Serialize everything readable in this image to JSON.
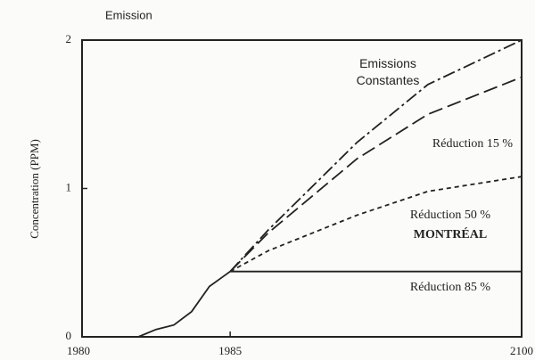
{
  "chart_data": {
    "type": "line",
    "title": "Emission",
    "ylabel": "Concentration (PPM)",
    "xlim": [
      1980,
      2100
    ],
    "xticks": [
      1980,
      1985,
      2100
    ],
    "ylim": [
      0,
      2
    ],
    "yticks": [
      0,
      1,
      2
    ],
    "annotations": [
      "MONTRÉAL"
    ],
    "series": [
      {
        "color": "#222",
        "dash": "solid",
        "x": [
          1981.9,
          1982.5,
          1983.1,
          1983.7,
          1984.3,
          1985
        ],
        "values": [
          0,
          0.05,
          0.08,
          0.17,
          0.34,
          0.44
        ]
      },
      {
        "name": "Emissions Constantes",
        "color": "#222",
        "dash": "dashdot",
        "x": [
          1985,
          2000,
          2035,
          2063,
          2100
        ],
        "values": [
          0.44,
          0.72,
          1.31,
          1.7,
          2.0
        ]
      },
      {
        "name": "Réduction 15 %",
        "color": "#222",
        "dash": "longdash",
        "x": [
          1985,
          2000,
          2035,
          2063,
          2100
        ],
        "values": [
          0.44,
          0.7,
          1.2,
          1.5,
          1.75
        ]
      },
      {
        "name": "Réduction 50 %",
        "color": "#222",
        "dash": "shortdash",
        "x": [
          1985,
          2000,
          2035,
          2063,
          2100
        ],
        "values": [
          0.44,
          0.58,
          0.82,
          0.98,
          1.08
        ]
      },
      {
        "name": "Réduction 85 %",
        "color": "#222",
        "dash": "solid",
        "x": [
          1985,
          2100
        ],
        "values": [
          0.44,
          0.44
        ]
      }
    ]
  }
}
